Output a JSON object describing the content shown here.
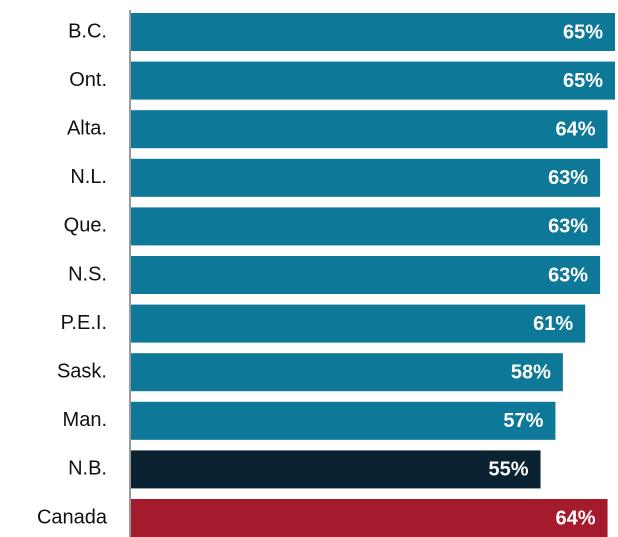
{
  "chart_data": {
    "type": "barh",
    "categories": [
      "B.C.",
      "Ont.",
      "Alta.",
      "N.L.",
      "Que.",
      "N.S.",
      "P.E.I.",
      "Sask.",
      "Man.",
      "N.B.",
      "Canada"
    ],
    "values": [
      65,
      65,
      64,
      63,
      63,
      63,
      61,
      58,
      57,
      55,
      64
    ],
    "value_labels": [
      "65%",
      "65%",
      "64%",
      "63%",
      "63%",
      "63%",
      "61%",
      "58%",
      "57%",
      "55%",
      "64%"
    ],
    "colors": [
      "#0d7897",
      "#0d7897",
      "#0d7897",
      "#0d7897",
      "#0d7897",
      "#0d7897",
      "#0d7897",
      "#0d7897",
      "#0d7897",
      "#0b2233",
      "#a51b2e"
    ]
  }
}
